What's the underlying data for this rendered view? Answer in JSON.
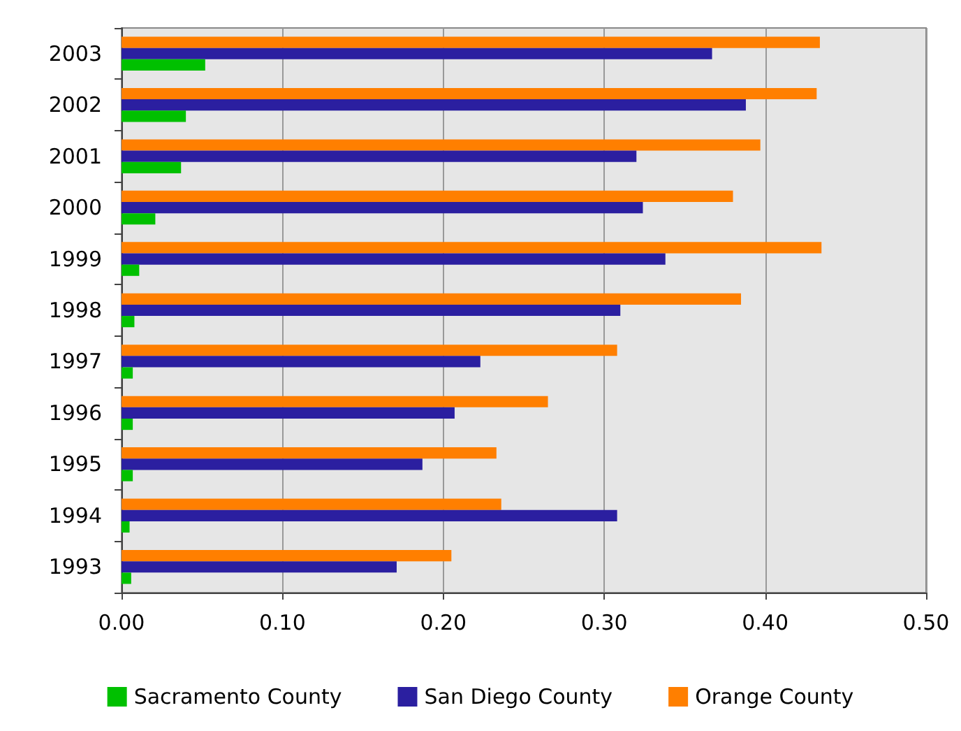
{
  "chart_data": {
    "type": "bar",
    "orientation": "horizontal",
    "categories": [
      "2003",
      "2002",
      "2001",
      "2000",
      "1999",
      "1998",
      "1997",
      "1996",
      "1995",
      "1994",
      "1993"
    ],
    "series": [
      {
        "name": "Orange County",
        "color": "#ff7f00",
        "values": [
          0.434,
          0.432,
          0.397,
          0.38,
          0.435,
          0.385,
          0.308,
          0.265,
          0.233,
          0.236,
          0.205
        ]
      },
      {
        "name": "San Diego County",
        "color": "#2b1fa0",
        "values": [
          0.367,
          0.388,
          0.32,
          0.324,
          0.338,
          0.31,
          0.223,
          0.207,
          0.187,
          0.308,
          0.171
        ]
      },
      {
        "name": "Sacramento County",
        "color": "#00c000",
        "values": [
          0.052,
          0.04,
          0.037,
          0.021,
          0.011,
          0.008,
          0.007,
          0.007,
          0.007,
          0.005,
          0.006
        ]
      }
    ],
    "xlim": [
      0,
      0.5
    ],
    "xticks": [
      {
        "value": 0,
        "label": "0.00"
      },
      {
        "value": 0.1,
        "label": "0.10"
      },
      {
        "value": 0.2,
        "label": "0.20"
      },
      {
        "value": 0.3,
        "label": "0.30"
      },
      {
        "value": 0.4,
        "label": "0.40"
      },
      {
        "value": 0.5,
        "label": "0.50"
      }
    ],
    "grid": "x",
    "legend": "bottom"
  }
}
